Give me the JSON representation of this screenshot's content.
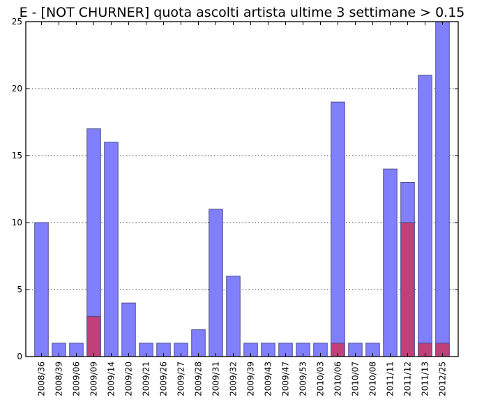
{
  "chart_data": {
    "type": "bar",
    "title": "E - [NOT CHURNER] quota ascolti artista ultime 3 settimane > 0.15",
    "xlabel": "",
    "ylabel": "",
    "ylim": [
      0,
      25
    ],
    "yticks": [
      0,
      5,
      10,
      15,
      20,
      25
    ],
    "grid": true,
    "categories": [
      "2008/36",
      "2008/39",
      "2009/06",
      "2009/09",
      "2009/14",
      "2009/20",
      "2009/21",
      "2009/26",
      "2009/27",
      "2009/28",
      "2009/31",
      "2009/32",
      "2009/39",
      "2009/43",
      "2009/47",
      "2009/53",
      "2010/03",
      "2010/06",
      "2010/07",
      "2010/08",
      "2011/11",
      "2011/12",
      "2011/13",
      "2012/25"
    ],
    "series": [
      {
        "color": "#8080ff",
        "values": [
          10,
          1,
          1,
          17,
          16,
          4,
          1,
          1,
          1,
          2,
          11,
          6,
          1,
          1,
          1,
          1,
          1,
          19,
          1,
          1,
          14,
          13,
          21,
          25
        ]
      },
      {
        "color": "#c0407a",
        "values": [
          0,
          0,
          0,
          3,
          0,
          0,
          0,
          0,
          0,
          0,
          0,
          0,
          0,
          0,
          0,
          0,
          0,
          1,
          0,
          0,
          0,
          10,
          1,
          1
        ]
      }
    ]
  }
}
